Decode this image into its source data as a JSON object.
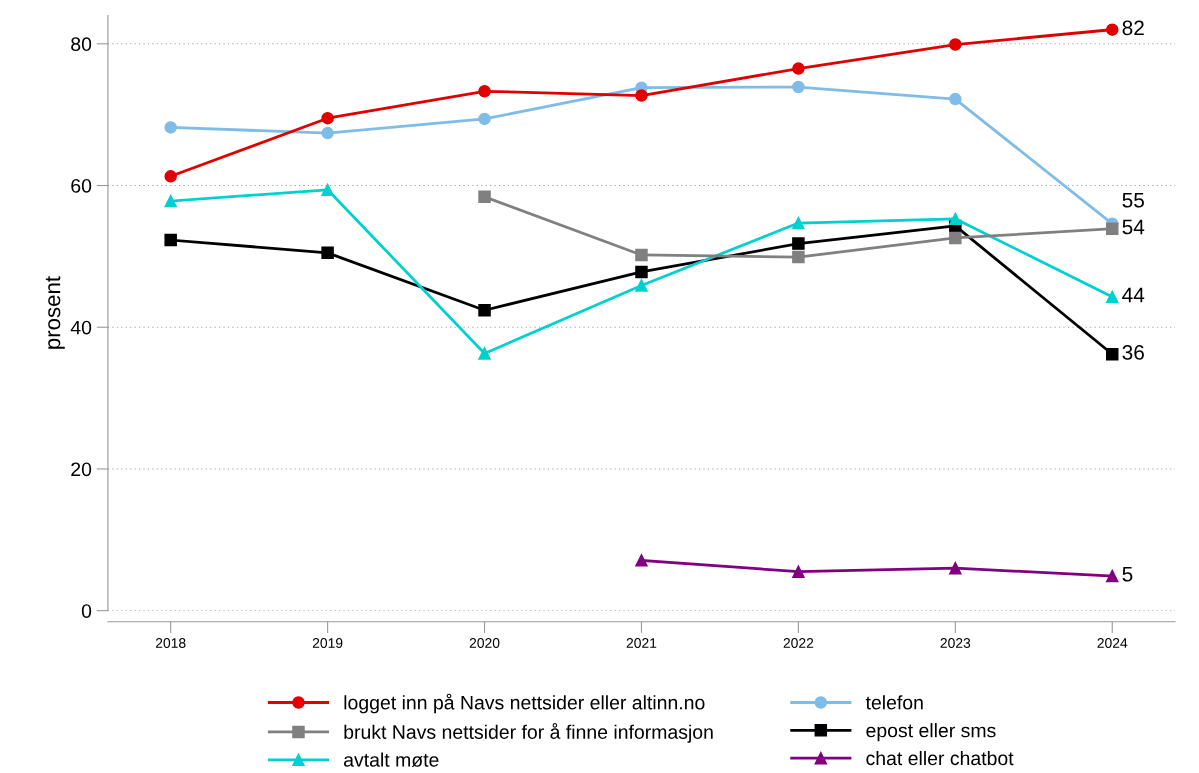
{
  "chart_data": {
    "type": "line",
    "ylabel": "prosent",
    "categories": [
      "2018",
      "2019",
      "2020",
      "2021",
      "2022",
      "2023",
      "2024"
    ],
    "ylim": [
      0,
      84
    ],
    "yticks": [
      0,
      20,
      40,
      60,
      80
    ],
    "grid": "y",
    "legend": "bottom",
    "series": [
      {
        "name": "logget inn på Navs nettsider eller altinn.no",
        "color": "#e00000",
        "marker": "circle",
        "values": [
          61.3,
          69.5,
          73.3,
          72.7,
          76.5,
          79.9,
          82
        ],
        "value_labels": [
          null,
          null,
          null,
          null,
          null,
          null,
          "82"
        ]
      },
      {
        "name": "brukt Navs nettsider for å finne informasjon",
        "color": "#808080",
        "marker": "square",
        "values": [
          null,
          null,
          58.4,
          50.2,
          49.9,
          52.6,
          53.9
        ],
        "value_labels": [
          null,
          null,
          null,
          null,
          null,
          null,
          "54"
        ]
      },
      {
        "name": "avtalt møte",
        "color": "#00d0d0",
        "marker": "triangle",
        "values": [
          57.8,
          59.4,
          36.3,
          45.9,
          54.7,
          55.3,
          44.3
        ],
        "value_labels": [
          null,
          null,
          null,
          null,
          null,
          null,
          "44"
        ]
      },
      {
        "name": "telefon",
        "color": "#80bce8",
        "marker": "circle",
        "values": [
          68.2,
          67.4,
          69.4,
          73.8,
          73.9,
          72.2,
          54.6
        ],
        "value_labels": [
          null,
          null,
          null,
          null,
          null,
          null,
          "55"
        ]
      },
      {
        "name": "epost eller sms",
        "color": "#000000",
        "marker": "square",
        "values": [
          52.3,
          50.5,
          42.4,
          47.8,
          51.8,
          54.3,
          36.2
        ],
        "value_labels": [
          null,
          null,
          null,
          null,
          null,
          null,
          "36"
        ]
      },
      {
        "name": "chat eller chatbot",
        "color": "#800080",
        "marker": "triangle",
        "values": [
          null,
          null,
          null,
          7.1,
          5.5,
          6.0,
          4.9
        ],
        "value_labels": [
          null,
          null,
          null,
          null,
          null,
          null,
          "5"
        ]
      }
    ]
  }
}
